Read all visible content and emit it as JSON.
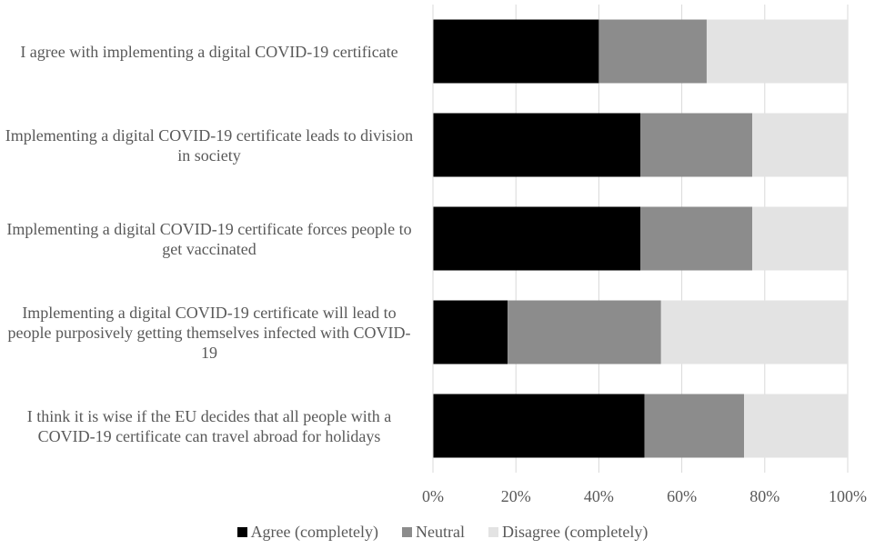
{
  "chart_data": {
    "type": "stacked_barh",
    "categories": [
      "I agree with implementing a digital COVID-19 certificate",
      "Implementing a digital COVID-19 certificate leads to division in society",
      "Implementing a digital COVID-19 certificate forces people to get vaccinated",
      "Implementing a digital COVID-19 certificate will lead to people purposively getting themselves infected with COVID-19",
      "I think it is wise if the EU decides that all people with a COVID-19 certificate can travel abroad for holidays"
    ],
    "series": [
      {
        "name": "Agree (completely)",
        "color": "#000000",
        "values": [
          40,
          50,
          50,
          18,
          51
        ]
      },
      {
        "name": "Neutral",
        "color": "#8c8c8c",
        "values": [
          26,
          27,
          27,
          37,
          24
        ]
      },
      {
        "name": "Disagree (completely)",
        "color": "#e3e3e3",
        "values": [
          34,
          23,
          23,
          45,
          25
        ]
      }
    ],
    "xlim": [
      0,
      100
    ],
    "xticks": [
      {
        "value": 0,
        "label": "0%"
      },
      {
        "value": 20,
        "label": "20%"
      },
      {
        "value": 40,
        "label": "40%"
      },
      {
        "value": 60,
        "label": "60%"
      },
      {
        "value": 80,
        "label": "80%"
      },
      {
        "value": 100,
        "label": "100%"
      }
    ],
    "grid": true
  }
}
